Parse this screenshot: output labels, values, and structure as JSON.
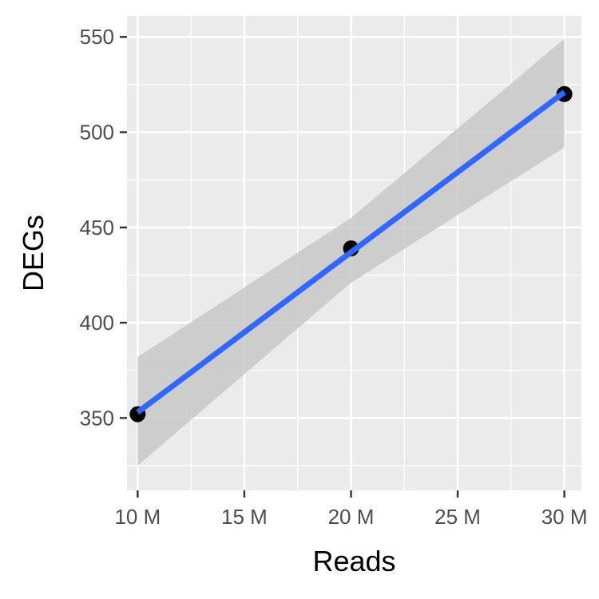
{
  "chart_data": {
    "type": "scatter",
    "xlabel": "Reads",
    "ylabel": "DEGs",
    "xlim": [
      9.5,
      30.8
    ],
    "ylim": [
      312,
      561
    ],
    "x_ticks": [
      10,
      15,
      20,
      25,
      30
    ],
    "x_tick_labels": [
      "10 M",
      "15 M",
      "20 M",
      "25 M",
      "30 M"
    ],
    "y_ticks": [
      350,
      400,
      450,
      500,
      550
    ],
    "y_tick_labels": [
      "350",
      "400",
      "450",
      "500",
      "550"
    ],
    "grid": true,
    "points": [
      {
        "x": 10,
        "y": 352
      },
      {
        "x": 20,
        "y": 439
      },
      {
        "x": 30,
        "y": 520
      }
    ],
    "trend_line": {
      "method": "linear",
      "start": {
        "x": 10,
        "y": 353
      },
      "end": {
        "x": 30,
        "y": 521
      },
      "confidence_band": [
        {
          "x": 10,
          "lower": 325,
          "upper": 382
        },
        {
          "x": 20,
          "lower": 421,
          "upper": 455
        },
        {
          "x": 30,
          "lower": 492,
          "upper": 549
        }
      ]
    },
    "colors": {
      "panel_background": "#ebebeb",
      "grid": "#ffffff",
      "points": "#000000",
      "trend_line": "#3366ff",
      "confidence_band": "#c8c8c8"
    }
  }
}
